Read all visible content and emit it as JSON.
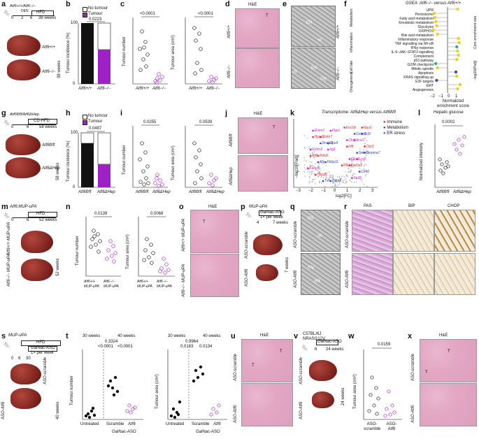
{
  "panels": {
    "a": {
      "letter": "a",
      "genotype": "Atf6+/+/Atf6−/−",
      "den": "DEN",
      "hfd": "HFD",
      "t0": "0",
      "t2": "2",
      "t6": "6",
      "t38": "38 weeks",
      "weeks_label": "38 weeks",
      "g1": "Atf6+/+",
      "g2": "Atf6−/−"
    },
    "b": {
      "letter": "b",
      "ylabel": "Tumour incidence (%)",
      "legend_no": "No tumour",
      "legend_yes": "Tumour",
      "pval": "0.0223",
      "ticks": [
        "0",
        "20",
        "40",
        "60",
        "80",
        "100"
      ],
      "x1": "Atf6+/+",
      "x2": "Atf6−/−"
    },
    "c": {
      "letter": "c",
      "ylabel1": "Tumour number",
      "ylabel2": "Tumour area (cm²)",
      "p1": "<0.0001",
      "p2": "<0.0001",
      "ticks1": [
        "0",
        "5",
        "10",
        "15",
        "20"
      ],
      "ticks2": [
        "0",
        "1",
        "2",
        "3",
        "4"
      ],
      "x1": "Atf6+/+",
      "x2": "Atf6−/−"
    },
    "d": {
      "letter": "d",
      "title": "H&E",
      "g1": "Atf6+/+",
      "g2": "Atf6−/−",
      "T": "T"
    },
    "e": {
      "letter": "e",
      "ER": "ER",
      "M": "M",
      "N": "N",
      "Gly": "Gly",
      "g1": "Atf6+/+",
      "g2": "Atf6−/−"
    },
    "f": {
      "letter": "f",
      "title": "GSEA: Atf6−/− versus Atf6+/+",
      "xlabel": "Normalized enrichment score",
      "xticks": [
        "−2",
        "−1",
        "0",
        "1"
      ],
      "groups": [
        "Metabolism",
        "Inflammation",
        "Cell fate",
        "Oncogenesis"
      ],
      "terms": [
        "UPR",
        "Peroxisome",
        "Fatty acid metabolism",
        "Xenobiotic metabolism",
        "Glycolysis",
        "OXPHOS",
        "Bile acid metabolism",
        "Inflammatory response",
        "TNF signalling via NF-κB",
        "IFNγ response",
        "IL-6–JAK–STAT3 signalling",
        "Complement",
        "p53 pathway",
        "G2/M checkpoint",
        "Mitotic spindle",
        "Apoptosis",
        "KRAS signalling up",
        "E2F targets",
        "EMT",
        "Angiogenesis"
      ],
      "size_title": "Core enrichment size",
      "size_ticks": [
        "10",
        "50",
        "100"
      ],
      "color_title": "−log10(Padj)",
      "color_ticks": [
        "1",
        "3",
        "5"
      ]
    },
    "g": {
      "letter": "g",
      "genotype": "Atf6fl/fl/Atf6ΔHep",
      "hfd": "CD-HFD",
      "t0": "0",
      "t6": "6",
      "t58": "58 weeks",
      "weeks_label": "58 weeks",
      "g1": "Atf6fl/fl",
      "g2": "Atf6ΔHep"
    },
    "h": {
      "letter": "h",
      "ylabel": "Tumour incidence (%)",
      "legend_no": "No tumour",
      "legend_yes": "Tumour",
      "pval": "0.0487",
      "ticks": [
        "0",
        "20",
        "40",
        "60",
        "80",
        "100"
      ],
      "x1": "Atf6fl/fl",
      "x2": "Atf6ΔHep"
    },
    "i": {
      "letter": "i",
      "ylabel1": "Tumour number",
      "ylabel2": "Tumour area (cm²)",
      "p1": "0.0255",
      "p2": "0.0539",
      "ticks1": [
        "0",
        "5",
        "10",
        "15",
        "20"
      ],
      "ticks2": [
        "0",
        "0.5",
        "1.0",
        "1.5"
      ],
      "x1": "Atf6fl/fl",
      "x2": "Atf6ΔHep"
    },
    "j": {
      "letter": "j",
      "title": "H&E",
      "g1": "Atf6fl/fl",
      "g2": "Atf6ΔHep",
      "T": "T"
    },
    "k": {
      "letter": "k",
      "title": "Transcriptome: Atf6ΔHep versus Atf6fl/fl",
      "xlabel": "log2[FC]",
      "ylabel": "−log10[Padj]",
      "xticks": [
        "−3",
        "−2",
        "−1",
        "0",
        "1",
        "2",
        "3"
      ],
      "yticks": [
        "0",
        "5",
        "10",
        "15",
        "20"
      ],
      "legend": [
        "Immune",
        "Metabolism",
        "ER stress"
      ],
      "genes": [
        "Gstp2",
        "Nqo1",
        "Gstm1",
        "Gstm4",
        "Gstm7",
        "Cbr1",
        "Gpx4",
        "Cbr3",
        "Gstm3",
        "Gstm1",
        "Pdia5",
        "Gpx2",
        "Fkbp11",
        "Pdia4",
        "Fabp5",
        "Cd40",
        "Hspa5",
        "Sel1l",
        "Txn",
        "Ero1lb",
        "Fbp1",
        "Ccl9",
        "Hyou1",
        "Acsl1",
        "Dnajc3",
        "Irf8",
        "Irg1",
        "Serpina7",
        "Atf6",
        "Lcn2",
        "Afp",
        "Col1a1"
      ]
    },
    "l": {
      "letter": "l",
      "title": "Hepatic glucose",
      "ylabel": "Normalized intensity",
      "pval": "0.0002",
      "ticks": [
        "0.6",
        "0.8",
        "1.0",
        "1.2",
        "1.4",
        "1.6",
        "1.8"
      ],
      "x1": "Atf6fl/fl",
      "x2": "Atf6ΔHep"
    },
    "m": {
      "letter": "m",
      "genotype": "Atf6;MUP-uPA",
      "hfd": "HFD",
      "t0": "0",
      "t6": "6",
      "t52": "52 weeks",
      "weeks_label": "52 weeks",
      "g1": "Atf6+/+ MUP-uPA",
      "g2": "Atf6−/− MUP-uPA"
    },
    "n": {
      "letter": "n",
      "ylabel1": "Tumour number",
      "ylabel2": "Tumour area (cm²)",
      "p1": "0.0139",
      "p2": "0.0068",
      "ticks1": [
        "0",
        "10",
        "20",
        "30",
        "40"
      ],
      "ticks2": [
        "0",
        "1",
        "2",
        "3",
        "4",
        "5"
      ],
      "x1": "Atf6+/+ MUP-uPA",
      "x2": "Atf6−/− MUP-uPA"
    },
    "o": {
      "letter": "o",
      "title": "H&E",
      "g1": "Atf6+/+ MUP-uPA",
      "g2": "Atf6−/− MUP-uPA",
      "T": "T"
    },
    "p": {
      "letter": "p",
      "genotype": "MUP-uPA",
      "aso": "GalNac-ASO",
      "freq": "1× per week",
      "t4": "4",
      "t7": "7 weeks",
      "weeks_label": "7 weeks",
      "g1": "ASO-scramble",
      "g2": "ASO-Atf6"
    },
    "q": {
      "letter": "q",
      "ER": "ER",
      "M": "M",
      "C": "C",
      "Gly": "Gly",
      "g1": "ASO-scramble",
      "g2": "ASO-Atf6"
    },
    "r": {
      "letter": "r",
      "h1": "PAS",
      "h2": "BIP",
      "h3": "CHOP",
      "g1": "ASO-scramble",
      "g2": "ASO-Atf6"
    },
    "s": {
      "letter": "s",
      "genotype": "MUP-uPA",
      "hfd": "HFD",
      "aso": "GalNac-ASO",
      "freq": "1× per week",
      "t0": "0",
      "t6": "6",
      "t30": "30",
      "t40": "40 weeks",
      "weeks_label": "40 weeks",
      "g1": "ASO-scramble",
      "g2": "ASO-Atf6"
    },
    "t": {
      "letter": "t",
      "ylabel1": "Tumour number",
      "ylabel2": "Tumour area (cm²)",
      "w30": "30 weeks",
      "w40": "40 weeks",
      "p1a": "0.3324",
      "p1b": "<0.0001",
      "p1c": "<0.0001",
      "p2a": "0.9964",
      "p2b": "0.0183",
      "p2c": "0.0134",
      "ticks1": [
        "0",
        "5",
        "10",
        "15",
        "20"
      ],
      "ticks2": [
        "0",
        "0.5",
        "1.0",
        "1.5"
      ],
      "x1": "Untreated",
      "x2": "Scramble",
      "x3": "Atf6",
      "xgroup": "GalNac-ASO"
    },
    "u": {
      "letter": "u",
      "title": "H&E",
      "g1": "ASO-scramble",
      "g2": "ASO-Atf6",
      "T": "T"
    },
    "v": {
      "letter": "v",
      "genotype": "C57BL/6J NRASG12V",
      "aso": "GalNac-ASO",
      "t8": "8",
      "t24": "24 weeks",
      "weeks_label": "24 weeks",
      "g1": "ASO-scramble",
      "g2": "ASO-Atf6"
    },
    "w": {
      "letter": "w",
      "ylabel": "Tumour area (cm²)",
      "pval": "0.0159",
      "ticks": [
        "0",
        "0.5",
        "1.0",
        "1.5"
      ],
      "x1": "ASO-scramble",
      "x2": "ASO-Atf6"
    },
    "x": {
      "letter": "x",
      "title": "H&E",
      "g1": "ASO-scramble",
      "g2": "ASO-Atf6",
      "T": "T"
    }
  },
  "colors": {
    "purple": "#a020c8",
    "black": "#111111",
    "red": "#e0262b",
    "blue": "#2b3fd6",
    "magenta": "#c41fc7"
  }
}
